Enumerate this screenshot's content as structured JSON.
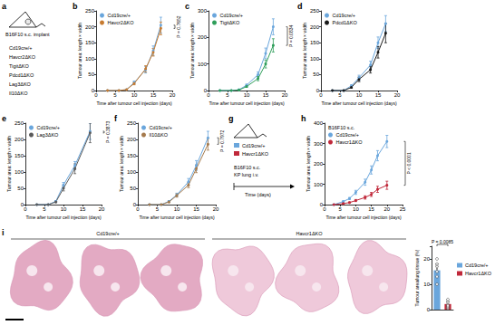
{
  "chart_data": [
    {
      "type": "line",
      "panel_label": "b",
      "x_label": "Time after tumour cell injection (days)",
      "y_label": "Tumour area: length × width",
      "xlim": [
        0,
        20
      ],
      "xticks": [
        0,
        5,
        10,
        15,
        20
      ],
      "ylim": [
        0,
        250
      ],
      "yticks": [
        0,
        50,
        100,
        150,
        200,
        250
      ],
      "grid": false,
      "legend": "upper left",
      "marker": "circle",
      "p_value": "P = 0.7652",
      "x": [
        3,
        6,
        8,
        10,
        13,
        15,
        17
      ],
      "series": [
        {
          "name": "Cd19cre/+",
          "color": "#6aa6dc",
          "values": [
            0,
            0,
            3,
            25,
            65,
            125,
            205
          ],
          "errors": [
            0,
            0,
            1,
            5,
            10,
            15,
            25
          ]
        },
        {
          "name": "Havcr2ΔKO",
          "color": "#c77b30",
          "values": [
            0,
            0,
            3,
            22,
            68,
            120,
            195
          ],
          "errors": [
            0,
            0,
            1,
            4,
            10,
            12,
            20
          ]
        }
      ]
    },
    {
      "type": "line",
      "panel_label": "c",
      "x_label": "Time after tumour cell injection (days)",
      "y_label": "Tumour area: length × width",
      "xlim": [
        0,
        20
      ],
      "xticks": [
        0,
        5,
        10,
        15,
        20
      ],
      "ylim": [
        0,
        300
      ],
      "yticks": [
        0,
        100,
        200,
        300
      ],
      "grid": false,
      "legend": "upper left",
      "marker": "circle",
      "p_value": "P = 0.0834",
      "x": [
        3,
        6,
        8,
        10,
        13,
        15,
        17
      ],
      "series": [
        {
          "name": "Cd19cre/+",
          "color": "#6aa6dc",
          "values": [
            0,
            0,
            3,
            20,
            60,
            140,
            240
          ],
          "errors": [
            0,
            0,
            1,
            4,
            10,
            20,
            30
          ]
        },
        {
          "name": "TigitΔKO",
          "color": "#2f9e5a",
          "values": [
            0,
            0,
            2,
            15,
            45,
            100,
            170
          ],
          "errors": [
            0,
            0,
            1,
            3,
            8,
            15,
            25
          ]
        }
      ]
    },
    {
      "type": "line",
      "panel_label": "d",
      "x_label": "Time after tumour cell injection (days)",
      "y_label": "Tumour area: length × width",
      "xlim": [
        0,
        20
      ],
      "xticks": [
        0,
        5,
        10,
        15,
        20
      ],
      "ylim": [
        0,
        250
      ],
      "yticks": [
        0,
        50,
        100,
        150,
        200,
        250
      ],
      "grid": false,
      "legend": "upper left",
      "marker": "circle",
      "x": [
        3,
        6,
        8,
        10,
        13,
        15,
        17
      ],
      "series": [
        {
          "name": "Cd19cre/+",
          "color": "#6aa6dc",
          "values": [
            0,
            0,
            15,
            40,
            80,
            150,
            210
          ],
          "errors": [
            0,
            0,
            3,
            8,
            12,
            18,
            25
          ]
        },
        {
          "name": "Pdcd1ΔKO",
          "color": "#1a1a1a",
          "values": [
            0,
            0,
            10,
            35,
            65,
            120,
            180
          ],
          "errors": [
            0,
            0,
            3,
            7,
            10,
            18,
            30
          ]
        }
      ]
    },
    {
      "type": "line",
      "panel_label": "e",
      "x_label": "Time after tumour cell injection (days)",
      "y_label": "Tumour area: length × width",
      "xlim": [
        0,
        20
      ],
      "xticks": [
        0,
        5,
        10,
        15,
        20
      ],
      "ylim": [
        0,
        250
      ],
      "yticks": [
        0,
        50,
        100,
        150,
        200,
        250
      ],
      "grid": false,
      "legend": "upper left",
      "marker": "circle",
      "p_value": "P = 0.3873",
      "x": [
        3,
        6,
        8,
        10,
        13,
        17
      ],
      "series": [
        {
          "name": "Cd19cre/+",
          "color": "#6aa6dc",
          "values": [
            0,
            0,
            10,
            60,
            120,
            225
          ],
          "errors": [
            0,
            0,
            2,
            8,
            12,
            25
          ]
        },
        {
          "name": "Lag3ΔKO",
          "color": "#5a5a5a",
          "values": [
            0,
            0,
            8,
            50,
            110,
            220
          ],
          "errors": [
            0,
            0,
            2,
            8,
            15,
            30
          ]
        }
      ]
    },
    {
      "type": "line",
      "panel_label": "f",
      "x_label": "Time after tumour cell injection (days)",
      "y_label": "Tumour area: length × width",
      "xlim": [
        0,
        20
      ],
      "xticks": [
        0,
        5,
        10,
        15,
        20
      ],
      "ylim": [
        0,
        250
      ],
      "yticks": [
        0,
        50,
        100,
        150,
        200,
        250
      ],
      "grid": false,
      "legend": "upper left",
      "marker": "circle",
      "p_value": "P = 0.7972",
      "x": [
        3,
        6,
        8,
        10,
        13,
        15,
        18
      ],
      "series": [
        {
          "name": "Cd19cre/+",
          "color": "#6aa6dc",
          "values": [
            0,
            0,
            10,
            30,
            70,
            120,
            205
          ],
          "errors": [
            0,
            0,
            2,
            5,
            10,
            15,
            20
          ]
        },
        {
          "name": "Il10ΔKO",
          "color": "#a57a4c",
          "values": [
            0,
            0,
            8,
            28,
            60,
            110,
            185
          ],
          "errors": [
            0,
            0,
            2,
            5,
            8,
            12,
            18
          ]
        }
      ]
    },
    {
      "type": "line",
      "panel_label": "h",
      "x_label": "Time after tumour cell injection (days)",
      "y_label": "Tumour area: length × width",
      "xlim": [
        0,
        25
      ],
      "xticks": [
        0,
        5,
        10,
        15,
        20,
        25
      ],
      "ylim": [
        0,
        400
      ],
      "yticks": [
        0,
        100,
        200,
        300,
        400
      ],
      "grid": false,
      "legend": "upper left",
      "marker": "circle",
      "p_value": "P < 0.0001",
      "annotation": "B16F10 s.c.",
      "x": [
        3,
        6,
        8,
        10,
        13,
        15,
        17,
        20
      ],
      "series": [
        {
          "name": "Cd19cre/+",
          "color": "#6aa6dc",
          "values": [
            0,
            15,
            30,
            60,
            110,
            170,
            240,
            310
          ],
          "errors": [
            0,
            3,
            5,
            10,
            15,
            20,
            25,
            30
          ]
        },
        {
          "name": "Havcr1ΔKO",
          "color": "#c0283a",
          "values": [
            0,
            5,
            10,
            20,
            35,
            50,
            75,
            95
          ],
          "errors": [
            0,
            2,
            3,
            5,
            8,
            10,
            15,
            20
          ]
        }
      ]
    },
    {
      "type": "bar",
      "panel_label": "i",
      "y_label": "Tumour area/lung tissue (%)",
      "categories": [
        "Cd19cre/+",
        "Havcr1ΔKO"
      ],
      "values": [
        15.5,
        2.2
      ],
      "errors": [
        2.5,
        1
      ],
      "colors": [
        "#6aa6dc",
        "#c0283a"
      ],
      "points": [
        [
          10,
          13,
          15,
          17,
          20,
          18
        ],
        [
          0.5,
          1,
          2,
          3,
          4,
          1.5
        ]
      ],
      "ylim": [
        0,
        25
      ],
      "yticks": [
        0,
        10,
        20
      ],
      "tick_labels": "y",
      "legend": "right",
      "grid": false,
      "p_value": "P = 0.0085"
    }
  ],
  "schematic_a": {
    "panel_label": "a",
    "title": "B16F10 s.c. implant",
    "genotypes": [
      "Cd19cre/+",
      "Havcr2ΔKO",
      "TigitΔKO",
      "Pdcd1ΔKO",
      "Lag3ΔKO",
      "Il10ΔKO"
    ]
  },
  "schematic_g": {
    "panel_label": "g",
    "legend": [
      {
        "name": "Cd19cre/+",
        "color": "#6aa6dc"
      },
      {
        "name": "Havcr1ΔKO",
        "color": "#c0283a"
      }
    ],
    "labels": [
      "B16F10 s.c.",
      "KP lung i.v."
    ],
    "x_label": "Time (days)"
  },
  "histology": {
    "groups": [
      {
        "name": "Cd19cre/+",
        "count": 3
      },
      {
        "name": "Havcr1ΔKO",
        "count": 3
      }
    ]
  }
}
